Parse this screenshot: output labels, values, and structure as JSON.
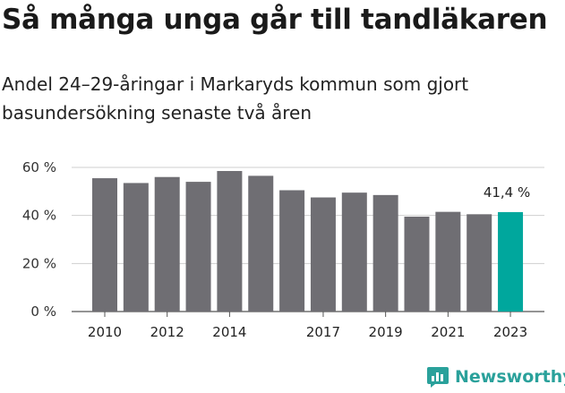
{
  "title": "Så många unga går till tandläkaren",
  "subtitle": "Andel 24–29-åringar i Markaryds kommun som gjort basundersökning senaste två åren",
  "brand": {
    "name": "Newsworthy",
    "color": "#2aa19b",
    "icon": "newsworthy-chart-bubble-icon"
  },
  "chart_data": {
    "type": "bar",
    "categories": [
      "2010",
      "2011",
      "2012",
      "2013",
      "2014",
      "2015",
      "2016",
      "2017",
      "2018",
      "2019",
      "2020",
      "2021",
      "2022",
      "2023"
    ],
    "values": [
      55.5,
      53.5,
      56.0,
      54.0,
      58.5,
      56.5,
      50.5,
      47.5,
      49.5,
      48.5,
      39.5,
      41.5,
      40.5,
      41.4
    ],
    "x_tick_labels": [
      "2010",
      "2012",
      "2014",
      "2017",
      "2019",
      "2021",
      "2023"
    ],
    "y_ticks": [
      0,
      20,
      40,
      60
    ],
    "y_tick_labels": [
      "0 %",
      "20 %",
      "40 %",
      "60 %"
    ],
    "ylim": [
      0,
      60
    ],
    "highlight_category": "2023",
    "highlight_label": "41,4 %",
    "bar_color": "#6f6e73",
    "highlight_color": "#00a79d",
    "grid": true
  }
}
